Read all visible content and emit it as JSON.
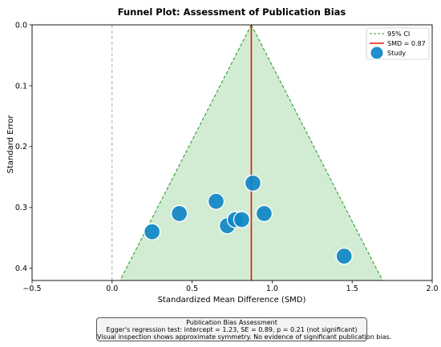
{
  "chart_data": {
    "type": "scatter",
    "title": "Funnel Plot: Assessment of Publication Bias",
    "xlabel": "Standardized Mean Difference (SMD)",
    "ylabel": "Standard Error",
    "xlim": [
      -0.5,
      2.0
    ],
    "ylim": [
      0.42,
      0.0
    ],
    "y_axis_inverted": true,
    "x_ticks": [
      "-0.5",
      "0.0",
      "0.5",
      "1.0",
      "1.5",
      "2.0"
    ],
    "y_ticks": [
      "0.0",
      "0.1",
      "0.2",
      "0.3",
      "0.4"
    ],
    "pooled_smd": 0.87,
    "null_line_x": 0.0,
    "ci_funnel": {
      "apex": [
        0.87,
        0.0
      ],
      "bottom_left": [
        0.05,
        0.42
      ],
      "bottom_right": [
        1.69,
        0.42
      ]
    },
    "studies": [
      {
        "x": 0.25,
        "y": 0.34
      },
      {
        "x": 0.42,
        "y": 0.31
      },
      {
        "x": 0.65,
        "y": 0.29
      },
      {
        "x": 0.72,
        "y": 0.33
      },
      {
        "x": 0.77,
        "y": 0.32
      },
      {
        "x": 0.81,
        "y": 0.32
      },
      {
        "x": 0.88,
        "y": 0.26
      },
      {
        "x": 0.95,
        "y": 0.31
      },
      {
        "x": 1.45,
        "y": 0.38
      }
    ],
    "legend": {
      "placement": "top-right",
      "entries": [
        {
          "label": "95% CI",
          "style": "dashed-line",
          "color": "#2ca02c"
        },
        {
          "label": "SMD = 0.87",
          "style": "solid-line",
          "color": "#e8120c"
        },
        {
          "label": "Study",
          "style": "marker",
          "color": "#1f8fcf"
        }
      ]
    },
    "grid": false,
    "colors": {
      "funnel_fill": "#d2ecd4",
      "funnel_edge": "#2ca02c",
      "pooled_line": "#e8120c",
      "null_line": "#a0a0a0",
      "marker": "#0f86c4"
    }
  },
  "annotation": {
    "title": "Publication Bias Assessment",
    "line1": "Egger's regression test: intercept = 1.23, SE = 0.89, p = 0.21 (not significant)",
    "line2": "Visual inspection shows approximate symmetry. No evidence of significant publication bias."
  }
}
